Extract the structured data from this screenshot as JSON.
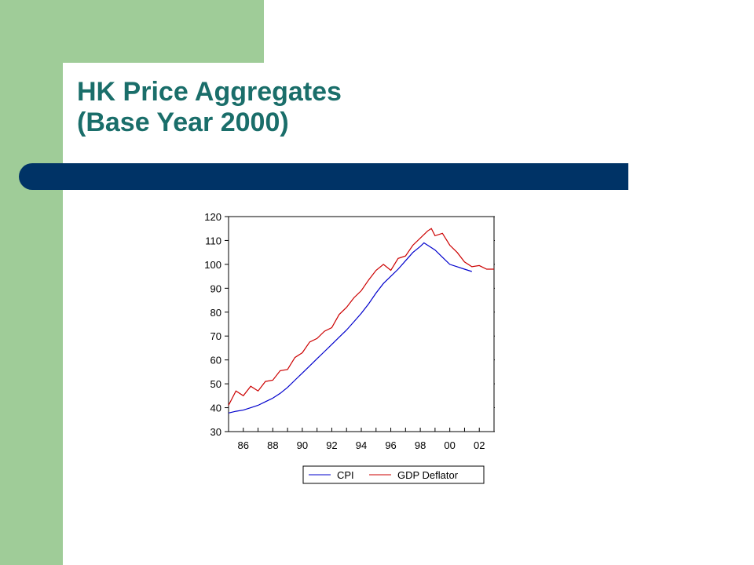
{
  "slide": {
    "title_line1": "HK Price Aggregates",
    "title_line2": "(Base Year 2000)",
    "colors": {
      "background": "#ffffff",
      "accent_green": "#9fcc98",
      "title_teal": "#1a6e6a",
      "divider_navy": "#003366"
    }
  },
  "chart_data": {
    "type": "line",
    "title": "",
    "xlabel": "",
    "ylabel": "",
    "xlim": [
      1985.0,
      2003.0
    ],
    "ylim": [
      30,
      120
    ],
    "yticks": [
      30,
      40,
      50,
      60,
      70,
      80,
      90,
      100,
      110,
      120
    ],
    "xtick_labels": [
      "86",
      "88",
      "90",
      "92",
      "94",
      "96",
      "98",
      "00",
      "02"
    ],
    "grid": false,
    "legend_position": "bottom-center",
    "series": [
      {
        "name": "CPI",
        "color": "#0000cc",
        "points": [
          [
            1985.0,
            37.8
          ],
          [
            1985.5,
            38.5
          ],
          [
            1986.0,
            39.0
          ],
          [
            1986.5,
            40.0
          ],
          [
            1987.0,
            41.0
          ],
          [
            1987.5,
            42.5
          ],
          [
            1988.0,
            44.0
          ],
          [
            1988.5,
            46.0
          ],
          [
            1989.0,
            48.5
          ],
          [
            1989.5,
            51.5
          ],
          [
            1990.0,
            54.5
          ],
          [
            1990.5,
            57.5
          ],
          [
            1991.0,
            60.5
          ],
          [
            1991.5,
            63.5
          ],
          [
            1992.0,
            66.5
          ],
          [
            1992.5,
            69.5
          ],
          [
            1993.0,
            72.5
          ],
          [
            1993.5,
            76.0
          ],
          [
            1994.0,
            79.5
          ],
          [
            1994.5,
            83.5
          ],
          [
            1995.0,
            88.0
          ],
          [
            1995.5,
            92.0
          ],
          [
            1996.0,
            95.0
          ],
          [
            1996.5,
            98.0
          ],
          [
            1997.0,
            101.5
          ],
          [
            1997.5,
            105.0
          ],
          [
            1998.0,
            107.5
          ],
          [
            1998.25,
            109.0
          ],
          [
            1998.5,
            108.0
          ],
          [
            1999.0,
            106.0
          ],
          [
            1999.5,
            103.0
          ],
          [
            2000.0,
            100.0
          ],
          [
            2000.5,
            99.0
          ],
          [
            2001.0,
            98.0
          ],
          [
            2001.5,
            97.0
          ]
        ]
      },
      {
        "name": "GDP Deflator",
        "color": "#cc0000",
        "points": [
          [
            1985.0,
            41.0
          ],
          [
            1985.5,
            47.0
          ],
          [
            1986.0,
            45.0
          ],
          [
            1986.5,
            49.0
          ],
          [
            1987.0,
            47.0
          ],
          [
            1987.5,
            51.0
          ],
          [
            1988.0,
            51.5
          ],
          [
            1988.5,
            55.5
          ],
          [
            1989.0,
            56.0
          ],
          [
            1989.5,
            61.0
          ],
          [
            1990.0,
            63.0
          ],
          [
            1990.5,
            67.5
          ],
          [
            1991.0,
            69.0
          ],
          [
            1991.5,
            72.0
          ],
          [
            1992.0,
            73.5
          ],
          [
            1992.5,
            79.0
          ],
          [
            1993.0,
            82.0
          ],
          [
            1993.5,
            86.0
          ],
          [
            1994.0,
            89.0
          ],
          [
            1994.5,
            93.5
          ],
          [
            1995.0,
            97.5
          ],
          [
            1995.5,
            100.0
          ],
          [
            1996.0,
            97.5
          ],
          [
            1996.5,
            102.5
          ],
          [
            1997.0,
            103.5
          ],
          [
            1997.5,
            108.0
          ],
          [
            1998.0,
            111.0
          ],
          [
            1998.5,
            114.0
          ],
          [
            1998.75,
            115.0
          ],
          [
            1999.0,
            112.0
          ],
          [
            1999.5,
            113.0
          ],
          [
            2000.0,
            108.0
          ],
          [
            2000.5,
            105.0
          ],
          [
            2001.0,
            101.0
          ],
          [
            2001.5,
            99.0
          ],
          [
            2002.0,
            99.5
          ],
          [
            2002.5,
            98.0
          ],
          [
            2003.0,
            98.0
          ]
        ]
      }
    ]
  }
}
